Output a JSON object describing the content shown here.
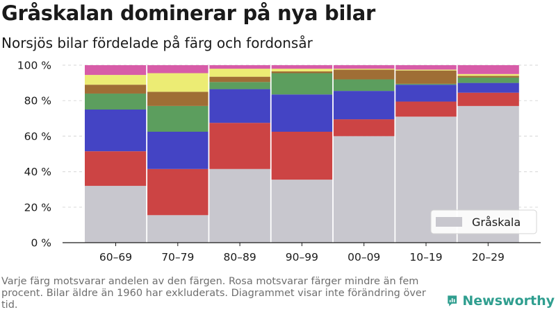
{
  "title": "Gråskalan dominerar på nya bilar",
  "subtitle": "Norsjös bilar fördelade på färg och fordonsår",
  "footnote": "Varje färg motsvarar andelen av den färgen. Rosa motsvarar färger mindre än fem procent. Bilar äldre än 1960 har exkluderats. Diagrammet visar inte förändring över tid.",
  "brand": {
    "name": "Newsworthy",
    "icon": "newsworthy-logo-icon",
    "color": "#2f9e8f"
  },
  "chart_data": {
    "type": "bar",
    "stacked": true,
    "categories": [
      "60–69",
      "70–79",
      "80–89",
      "90–99",
      "00–09",
      "10–19",
      "20–29"
    ],
    "y_ticks": [
      "0 %",
      "20 %",
      "40 %",
      "60 %",
      "80 %",
      "100 %"
    ],
    "ylim": [
      0,
      100
    ],
    "grid": true,
    "legend": {
      "position": "bottom-right",
      "entries": [
        "Gråskala"
      ]
    },
    "series": [
      {
        "name": "Gråskala",
        "color": "#c8c7ce",
        "values": [
          32,
          15.5,
          41.5,
          35.5,
          60,
          71,
          77
        ]
      },
      {
        "color": "#cc4444",
        "values": [
          19.5,
          26,
          26,
          27,
          9.5,
          8.5,
          7.5
        ]
      },
      {
        "color": "#4444c4",
        "values": [
          23.5,
          21,
          19,
          21,
          16,
          9.5,
          5.5
        ]
      },
      {
        "color": "#5c9e5e",
        "values": [
          9,
          14.5,
          4,
          12,
          6.5,
          0.5,
          3
        ]
      },
      {
        "color": "#9f6e35",
        "values": [
          5,
          8,
          3,
          1,
          5.5,
          7.5,
          1
        ]
      },
      {
        "color": "#ecec74",
        "values": [
          5.5,
          10.5,
          4.5,
          1.5,
          0.5,
          0.5,
          1
        ]
      },
      {
        "color": "#d75ca8",
        "values": [
          5.5,
          4.5,
          2,
          2,
          2,
          2.5,
          5
        ]
      }
    ]
  }
}
